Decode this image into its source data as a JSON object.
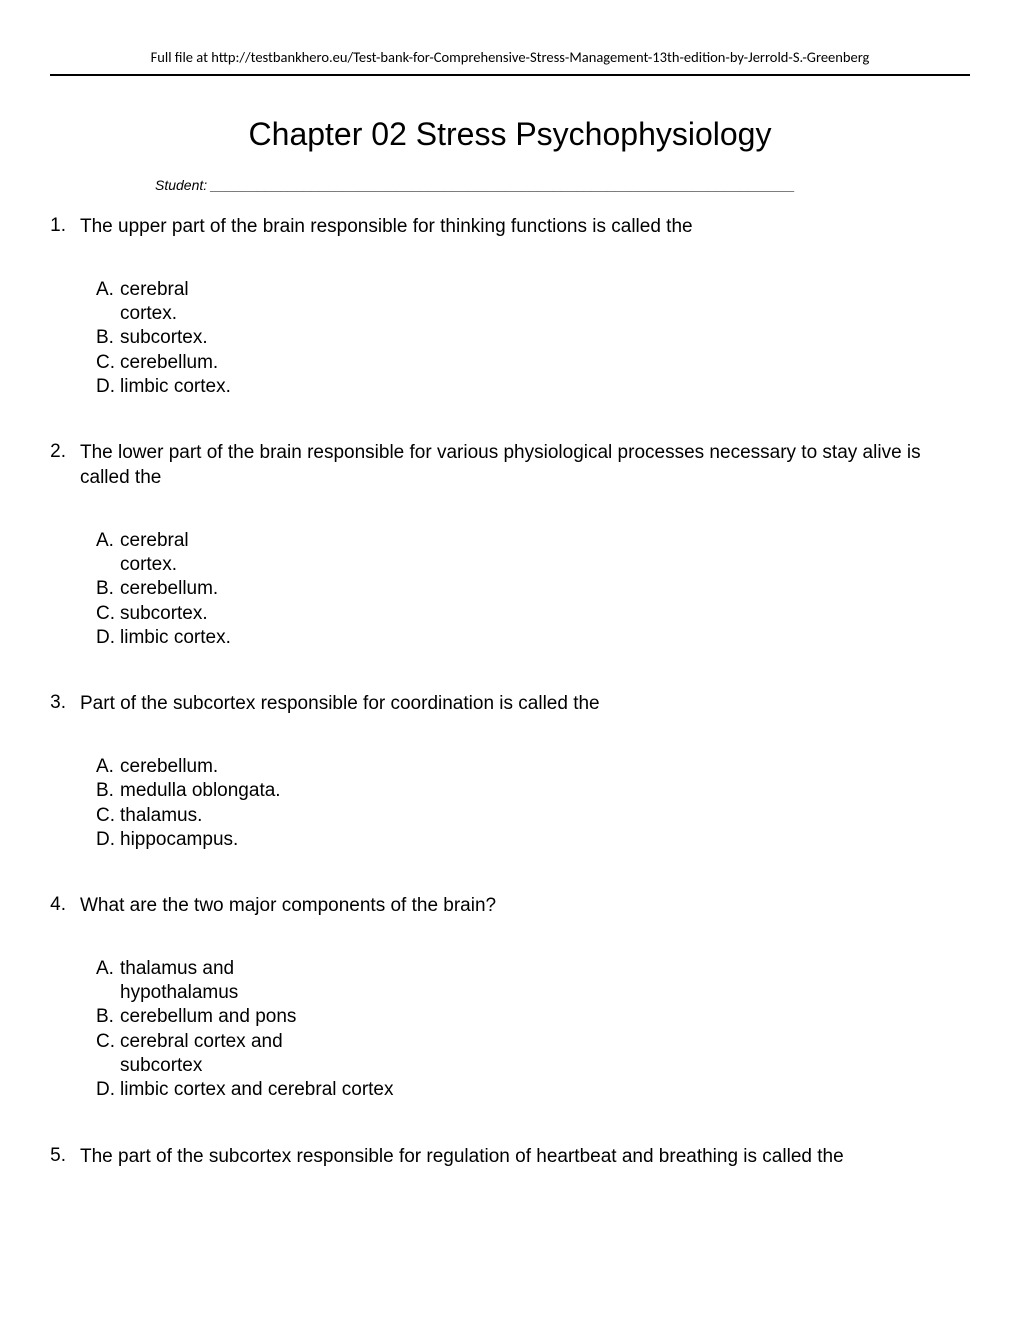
{
  "header": {
    "text": "Full file at http://testbankhero.eu/Test-bank-for-Comprehensive-Stress-Management-13th-edition-by-Jerrold-S.-Greenberg"
  },
  "title": "Chapter 02 Stress Psychophysiology",
  "student_label": "Student: ___________________________________________________________________________",
  "questions": [
    {
      "number": "1.",
      "text": "The upper part of the brain responsible for thinking functions is called the",
      "options": [
        {
          "letter": "A.",
          "text": "cerebral cortex.",
          "wrap": true
        },
        {
          "letter": "B.",
          "text": "subcortex."
        },
        {
          "letter": "C.",
          "text": "cerebellum."
        },
        {
          "letter": "D.",
          "text": "limbic cortex."
        }
      ]
    },
    {
      "number": "2.",
      "text": "The lower part of the brain responsible for various physiological processes necessary to stay alive is called the",
      "options": [
        {
          "letter": "A.",
          "text": "cerebral cortex.",
          "wrap": true
        },
        {
          "letter": "B.",
          "text": "cerebellum."
        },
        {
          "letter": "C.",
          "text": "subcortex."
        },
        {
          "letter": "D.",
          "text": "limbic cortex."
        }
      ]
    },
    {
      "number": "3.",
      "text": "Part of the subcortex responsible for coordination is called the",
      "options": [
        {
          "letter": "A.",
          "text": "cerebellum."
        },
        {
          "letter": "B.",
          "text": "medulla oblongata."
        },
        {
          "letter": "C.",
          "text": "thalamus."
        },
        {
          "letter": "D.",
          "text": "hippocampus."
        }
      ]
    },
    {
      "number": "4.",
      "text": "What are the two major components of the brain?",
      "options": [
        {
          "letter": "A.",
          "text": "thalamus and hypothalamus",
          "wrap": true
        },
        {
          "letter": "B.",
          "text": "cerebellum and pons"
        },
        {
          "letter": "C.",
          "text": "cerebral cortex and subcortex",
          "wrap": true
        },
        {
          "letter": "D.",
          "text": "limbic cortex and cerebral cortex"
        }
      ]
    },
    {
      "number": "5.",
      "text": "The part of the subcortex responsible for regulation of heartbeat and breathing is called the",
      "options": []
    }
  ],
  "option_wrap_widths": {
    "cerebral cortex.": "80px",
    "thalamus and hypothalamus": "140px",
    "cerebral cortex and subcortex": "175px"
  }
}
